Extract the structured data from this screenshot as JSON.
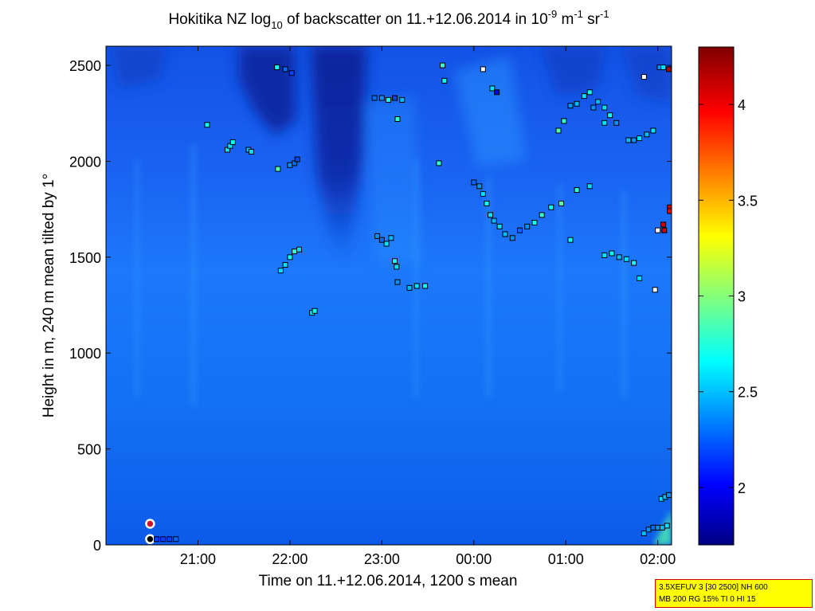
{
  "chart_data": {
    "type": "heatmap",
    "title": {
      "prefix": "Hokitika NZ log",
      "log_base": "10",
      "mid": " of backscatter on 11.+12.06.2014 in 10",
      "exp1": "-9",
      "unit1": " m",
      "exp2": "-1",
      "unit2": " sr",
      "exp3": "-1"
    },
    "xlabel": "Time on 11.+12.06.2014, 1200 s mean",
    "ylabel": "Height in m, 240 m mean tilted by 1°",
    "x_ticks": [
      "21:00",
      "22:00",
      "23:00",
      "00:00",
      "01:00",
      "02:00"
    ],
    "x_tick_hours": [
      21,
      22,
      23,
      24,
      25,
      26
    ],
    "xlim_hours": [
      20.0,
      26.15
    ],
    "y_ticks": [
      0,
      500,
      1000,
      1500,
      2000,
      2500
    ],
    "ylim": [
      0,
      2600
    ],
    "colorbar": {
      "ticks": [
        2,
        2.5,
        3,
        3.5,
        4
      ],
      "tick_labels": [
        "2",
        "2.5",
        "3",
        "3.5",
        "4"
      ],
      "range": [
        1.7,
        4.3
      ],
      "colormap": "jet"
    },
    "background_colors": {
      "low_level": "#0d5ff0",
      "mid_level": "#1a78fa",
      "upper": "#1a5af0",
      "dark_plume": "#0c2da8"
    },
    "markers": [
      {
        "t": 20.48,
        "h": 110,
        "style": "ring-red"
      },
      {
        "t": 20.48,
        "h": 30,
        "style": "ring-black"
      },
      {
        "t": 20.55,
        "h": 30,
        "c": 2.2
      },
      {
        "t": 20.62,
        "h": 30,
        "c": 2.2
      },
      {
        "t": 20.69,
        "h": 30,
        "c": 2.2
      },
      {
        "t": 20.76,
        "h": 30,
        "c": 2.3
      },
      {
        "t": 21.1,
        "h": 2190,
        "c": 2.7
      },
      {
        "t": 21.32,
        "h": 2060,
        "c": 2.6
      },
      {
        "t": 21.35,
        "h": 2080,
        "c": 2.6
      },
      {
        "t": 21.38,
        "h": 2100,
        "c": 2.7
      },
      {
        "t": 21.55,
        "h": 2060,
        "c": 2.5
      },
      {
        "t": 21.58,
        "h": 2050,
        "c": 2.6
      },
      {
        "t": 21.86,
        "h": 2490,
        "c": 2.7
      },
      {
        "t": 21.95,
        "h": 2480,
        "c": 2.3
      },
      {
        "t": 22.02,
        "h": 2460,
        "c": 2.2
      },
      {
        "t": 21.87,
        "h": 1960,
        "c": 2.9
      },
      {
        "t": 22.0,
        "h": 1980,
        "c": 2.4
      },
      {
        "t": 22.05,
        "h": 1990,
        "c": 2.3
      },
      {
        "t": 22.08,
        "h": 2010,
        "c": 2.2
      },
      {
        "t": 21.9,
        "h": 1430,
        "c": 2.6
      },
      {
        "t": 21.95,
        "h": 1460,
        "c": 2.6
      },
      {
        "t": 22.0,
        "h": 1500,
        "c": 2.7
      },
      {
        "t": 22.05,
        "h": 1530,
        "c": 2.8
      },
      {
        "t": 22.1,
        "h": 1540,
        "c": 2.6
      },
      {
        "t": 22.24,
        "h": 1210,
        "c": 2.6
      },
      {
        "t": 22.27,
        "h": 1220,
        "c": 2.7
      },
      {
        "t": 22.92,
        "h": 2330,
        "c": 2.3
      },
      {
        "t": 23.0,
        "h": 2330,
        "c": 2.4
      },
      {
        "t": 23.07,
        "h": 2320,
        "c": 2.7
      },
      {
        "t": 23.14,
        "h": 2330,
        "c": 2.2
      },
      {
        "t": 23.22,
        "h": 2320,
        "c": 2.5
      },
      {
        "t": 23.17,
        "h": 2220,
        "c": 2.8
      },
      {
        "t": 22.95,
        "h": 1610,
        "c": 2.4
      },
      {
        "t": 23.0,
        "h": 1590,
        "c": 2.3
      },
      {
        "t": 23.05,
        "h": 1570,
        "c": 2.6
      },
      {
        "t": 23.1,
        "h": 1600,
        "c": 2.5
      },
      {
        "t": 23.14,
        "h": 1480,
        "c": 2.7
      },
      {
        "t": 23.16,
        "h": 1450,
        "c": 2.6
      },
      {
        "t": 23.17,
        "h": 1370,
        "c": 2.4
      },
      {
        "t": 23.3,
        "h": 1340,
        "c": 2.5
      },
      {
        "t": 23.38,
        "h": 1350,
        "c": 2.6
      },
      {
        "t": 23.47,
        "h": 1350,
        "c": 2.7
      },
      {
        "t": 23.62,
        "h": 1990,
        "c": 2.8
      },
      {
        "t": 23.68,
        "h": 2420,
        "c": 2.7
      },
      {
        "t": 23.66,
        "h": 2500,
        "c": 2.8
      },
      {
        "t": 24.1,
        "h": 2480,
        "c": 1.9
      },
      {
        "t": 24.0,
        "h": 1890,
        "c": 2.3
      },
      {
        "t": 24.06,
        "h": 1870,
        "c": 2.4
      },
      {
        "t": 24.1,
        "h": 1830,
        "c": 2.6
      },
      {
        "t": 24.14,
        "h": 1780,
        "c": 2.7
      },
      {
        "t": 24.18,
        "h": 1720,
        "c": 2.6
      },
      {
        "t": 24.22,
        "h": 1690,
        "c": 2.5
      },
      {
        "t": 24.28,
        "h": 1660,
        "c": 2.6
      },
      {
        "t": 24.34,
        "h": 1620,
        "c": 2.5
      },
      {
        "t": 24.42,
        "h": 1600,
        "c": 2.4
      },
      {
        "t": 24.5,
        "h": 1640,
        "c": 2.3
      },
      {
        "t": 24.58,
        "h": 1660,
        "c": 2.4
      },
      {
        "t": 24.66,
        "h": 1680,
        "c": 2.7
      },
      {
        "t": 24.74,
        "h": 1720,
        "c": 2.8
      },
      {
        "t": 24.84,
        "h": 1760,
        "c": 2.7
      },
      {
        "t": 24.95,
        "h": 1780,
        "c": 2.9
      },
      {
        "t": 24.2,
        "h": 2380,
        "c": 2.6
      },
      {
        "t": 24.25,
        "h": 2360,
        "c": 2.0
      },
      {
        "t": 25.05,
        "h": 1590,
        "c": 2.7
      },
      {
        "t": 25.12,
        "h": 1850,
        "c": 2.8
      },
      {
        "t": 25.26,
        "h": 1870,
        "c": 2.6
      },
      {
        "t": 24.92,
        "h": 2160,
        "c": 2.9
      },
      {
        "t": 24.98,
        "h": 2210,
        "c": 2.8
      },
      {
        "t": 25.05,
        "h": 2290,
        "c": 2.4
      },
      {
        "t": 25.12,
        "h": 2300,
        "c": 2.5
      },
      {
        "t": 25.2,
        "h": 2340,
        "c": 2.6
      },
      {
        "t": 25.26,
        "h": 2360,
        "c": 2.7
      },
      {
        "t": 25.3,
        "h": 2280,
        "c": 2.4
      },
      {
        "t": 25.35,
        "h": 2310,
        "c": 2.5
      },
      {
        "t": 25.42,
        "h": 2280,
        "c": 2.6
      },
      {
        "t": 25.48,
        "h": 2240,
        "c": 2.7
      },
      {
        "t": 25.55,
        "h": 2200,
        "c": 2.4
      },
      {
        "t": 25.42,
        "h": 2200,
        "c": 2.6
      },
      {
        "t": 25.42,
        "h": 1510,
        "c": 2.6
      },
      {
        "t": 25.5,
        "h": 1520,
        "c": 2.7
      },
      {
        "t": 25.58,
        "h": 1500,
        "c": 2.5
      },
      {
        "t": 25.66,
        "h": 1490,
        "c": 2.6
      },
      {
        "t": 25.74,
        "h": 1470,
        "c": 2.7
      },
      {
        "t": 25.8,
        "h": 1390,
        "c": 2.6
      },
      {
        "t": 25.68,
        "h": 2110,
        "c": 2.5
      },
      {
        "t": 25.74,
        "h": 2110,
        "c": 2.4
      },
      {
        "t": 25.8,
        "h": 2120,
        "c": 2.6
      },
      {
        "t": 25.88,
        "h": 2140,
        "c": 2.5
      },
      {
        "t": 25.95,
        "h": 2160,
        "c": 2.6
      },
      {
        "t": 25.85,
        "h": 2440,
        "c": 1.9
      },
      {
        "t": 25.97,
        "h": 1330,
        "c": 1.9
      },
      {
        "t": 26.0,
        "h": 1640,
        "c": 1.9
      },
      {
        "t": 26.02,
        "h": 2490,
        "c": 2.4
      },
      {
        "t": 26.06,
        "h": 2490,
        "c": 2.6
      },
      {
        "t": 26.12,
        "h": 2480,
        "c": 4.2
      },
      {
        "t": 26.06,
        "h": 1670,
        "c": 4.1
      },
      {
        "t": 26.07,
        "h": 1640,
        "c": 4.1
      },
      {
        "t": 26.13,
        "h": 1760,
        "c": 4.1
      },
      {
        "t": 26.13,
        "h": 1740,
        "c": 4.0
      },
      {
        "t": 25.85,
        "h": 60,
        "c": 2.5
      },
      {
        "t": 25.9,
        "h": 80,
        "c": 2.4
      },
      {
        "t": 25.95,
        "h": 90,
        "c": 2.3
      },
      {
        "t": 26.0,
        "h": 90,
        "c": 2.4
      },
      {
        "t": 26.05,
        "h": 90,
        "c": 2.5
      },
      {
        "t": 26.1,
        "h": 100,
        "c": 2.6
      },
      {
        "t": 26.04,
        "h": 240,
        "c": 2.6
      },
      {
        "t": 26.08,
        "h": 250,
        "c": 2.5
      },
      {
        "t": 26.12,
        "h": 260,
        "c": 2.4
      }
    ]
  },
  "info_box": {
    "line1": "3.5XEFUV 3 [30 2500] NH 600",
    "line2": "MB 200 RG 15% TI 0 HI 15"
  }
}
